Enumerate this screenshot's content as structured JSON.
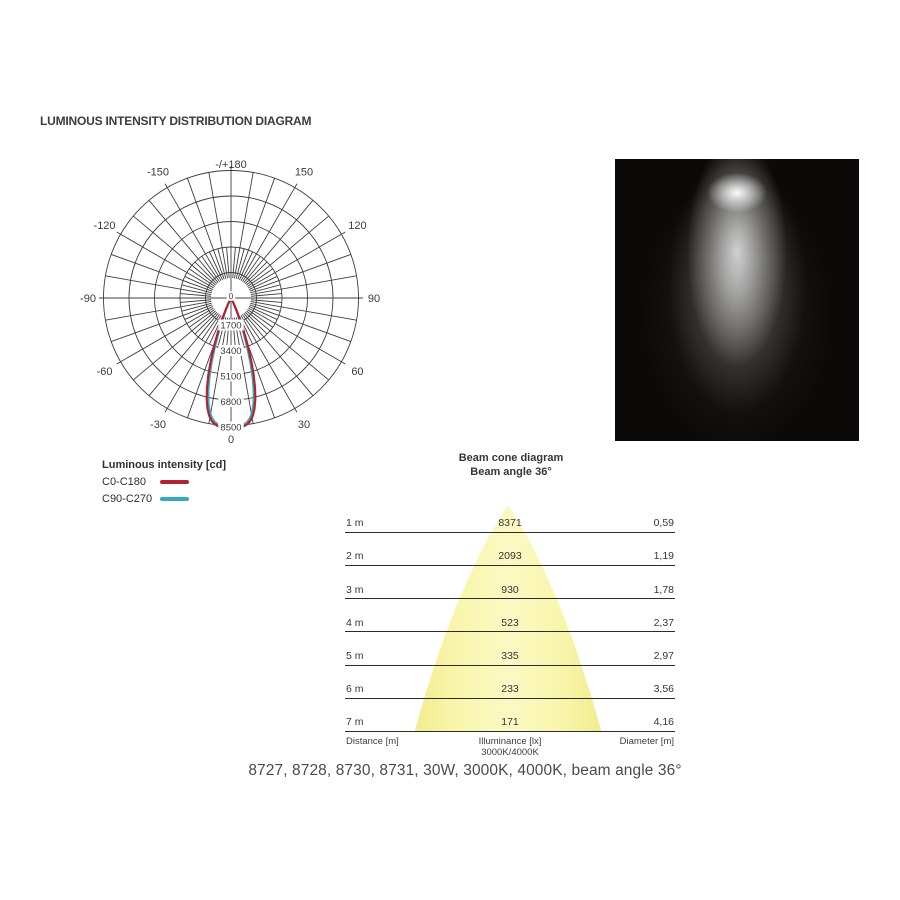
{
  "title": "LUMINOUS INTENSITY DISTRIBUTION DIAGRAM",
  "polar": {
    "ring_labels": [
      "0",
      "1700",
      "3400",
      "5100",
      "6800",
      "8500"
    ],
    "ring_values": [
      0,
      1700,
      3400,
      5100,
      6800,
      8500
    ],
    "max_value": 8500,
    "angle_labels": [
      {
        "text": "-/+180",
        "angle": 180,
        "r": 134
      },
      {
        "text": "-150",
        "angle": -150,
        "r": 146
      },
      {
        "text": "150",
        "angle": 150,
        "r": 146
      },
      {
        "text": "-120",
        "angle": -120,
        "r": 146
      },
      {
        "text": "120",
        "angle": 120,
        "r": 146
      },
      {
        "text": "-90",
        "angle": -90,
        "r": 143
      },
      {
        "text": "90",
        "angle": 90,
        "r": 143
      },
      {
        "text": "-60",
        "angle": -60,
        "r": 146
      },
      {
        "text": "60",
        "angle": 60,
        "r": 146
      },
      {
        "text": "-30",
        "angle": -30,
        "r": 146
      },
      {
        "text": "30",
        "angle": 30,
        "r": 146
      },
      {
        "text": "0",
        "angle": 0,
        "r": 141
      }
    ],
    "grid_color": "#3e3e3e"
  },
  "legend": {
    "title": "Luminous intensity [cd]",
    "items": [
      {
        "label": "C0-C180",
        "color": "#b4222f"
      },
      {
        "label": "C90-C270",
        "color": "#36a9c1"
      }
    ]
  },
  "beam_cone": {
    "heading": "Beam cone diagram",
    "subheading": "Beam angle 36°",
    "rows": [
      {
        "distance": "1 m",
        "illuminance": "8371",
        "diameter": "0,59"
      },
      {
        "distance": "2 m",
        "illuminance": "2093",
        "diameter": "1,19"
      },
      {
        "distance": "3 m",
        "illuminance": "930",
        "diameter": "1,78"
      },
      {
        "distance": "4 m",
        "illuminance": "523",
        "diameter": "2,37"
      },
      {
        "distance": "5 m",
        "illuminance": "335",
        "diameter": "2,97"
      },
      {
        "distance": "6 m",
        "illuminance": "233",
        "diameter": "3,56"
      },
      {
        "distance": "7 m",
        "illuminance": "171",
        "diameter": "4,16"
      }
    ],
    "footer": {
      "distance": "Distance [m]",
      "illuminance": "Illuminance [lx]",
      "cct": "3000K/4000K",
      "diameter": "Diameter [m]"
    },
    "cone_colors": {
      "edge": "#f2eb8d",
      "mid": "#f8f5a9",
      "center": "#fbf9c3"
    }
  },
  "caption": "8727, 8728, 8730, 8731, 30W, 3000K, 4000K, beam angle 36°",
  "chart_data": [
    {
      "type": "line",
      "subtype": "polar-photometric",
      "title": "LUMINOUS INTENSITY DISTRIBUTION DIAGRAM",
      "units": "cd",
      "radial_ticks": [
        0,
        1700,
        3400,
        5100,
        6800,
        8500
      ],
      "radial_max": 8500,
      "angle_tick_labels": [
        "-/+180",
        "-150",
        "150",
        "-120",
        "120",
        "-90",
        "90",
        "-60",
        "60",
        "-30",
        "30",
        "0"
      ],
      "series": [
        {
          "name": "C0-C180",
          "color": "#b4222f",
          "peak_cd": 8650,
          "peak_angle_deg": 0,
          "beam_angle_deg": 36,
          "profile": "super-gaussian",
          "sigma_deg": 19.7,
          "exponent": 4
        },
        {
          "name": "C90-C270",
          "color": "#36a9c1",
          "peak_cd": 8550,
          "peak_angle_deg": 0,
          "beam_angle_deg": 36,
          "profile": "super-gaussian",
          "sigma_deg": 18.5,
          "exponent": 4
        }
      ]
    },
    {
      "type": "table",
      "title": "Beam cone diagram",
      "subtitle": "Beam angle 36°",
      "columns": [
        "Distance [m]",
        "Illuminance [lx] 3000K/4000K",
        "Diameter [m]"
      ],
      "rows": [
        [
          1,
          8371,
          0.59
        ],
        [
          2,
          2093,
          1.19
        ],
        [
          3,
          930,
          1.78
        ],
        [
          4,
          523,
          2.37
        ],
        [
          5,
          335,
          2.97
        ],
        [
          6,
          233,
          3.56
        ],
        [
          7,
          171,
          4.16
        ]
      ]
    }
  ]
}
